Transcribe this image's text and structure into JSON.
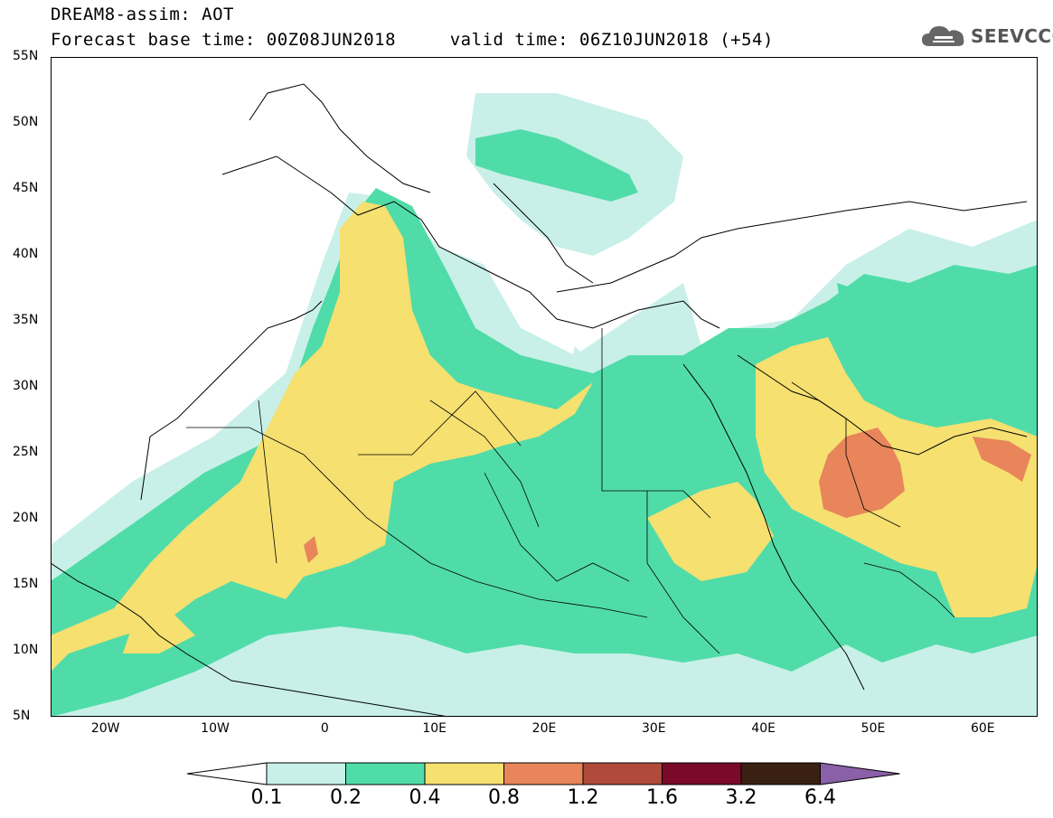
{
  "header": {
    "line1": "DREAM8-assim: AOT",
    "line2": "Forecast base time: 00Z08JUN2018     valid time: 06Z10JUN2018 (+54)",
    "logo_text": "SEEVCCC",
    "logo_icon": "cloud-icon"
  },
  "map": {
    "lon_min": -25,
    "lon_max": 65,
    "lat_min": 5,
    "lat_max": 55,
    "lat_labels": [
      "55N",
      "50N",
      "45N",
      "40N",
      "35N",
      "30N",
      "25N",
      "20N",
      "15N",
      "10N",
      "5N"
    ],
    "lat_values": [
      55,
      50,
      45,
      40,
      35,
      30,
      25,
      20,
      15,
      10,
      5
    ],
    "lon_labels": [
      "20W",
      "10W",
      "0",
      "10E",
      "20E",
      "30E",
      "40E",
      "50E",
      "60E"
    ],
    "lon_values": [
      -20,
      -10,
      0,
      10,
      20,
      30,
      40,
      50,
      60
    ]
  },
  "colorbar": {
    "labels": [
      "0.1",
      "0.2",
      "0.4",
      "0.8",
      "1.2",
      "1.6",
      "3.2",
      "6.4"
    ],
    "colors": [
      "#c8f0e8",
      "#50dca8",
      "#f5e070",
      "#e8855a",
      "#b04a3a",
      "#7a0a28",
      "#3a2010",
      "#8a60a8"
    ]
  }
}
